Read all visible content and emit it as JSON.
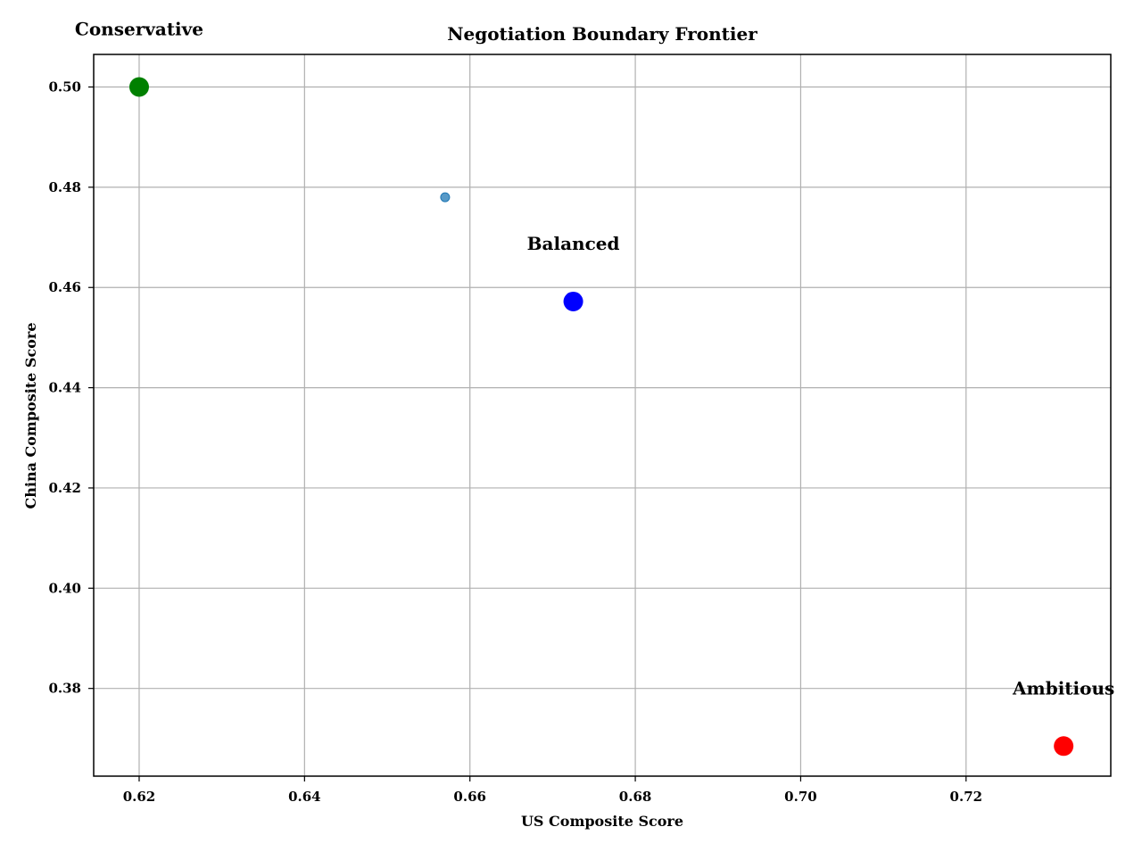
{
  "chart_data": {
    "type": "scatter",
    "title": "Negotiation Boundary Frontier",
    "xlabel": "US Composite Score",
    "ylabel": "China Composite Score",
    "xlim": [
      0.6145,
      0.7375
    ],
    "ylim": [
      0.3625,
      0.5065
    ],
    "xticks": [
      {
        "value": 0.62,
        "label": "0.62"
      },
      {
        "value": 0.64,
        "label": "0.64"
      },
      {
        "value": 0.66,
        "label": "0.66"
      },
      {
        "value": 0.68,
        "label": "0.68"
      },
      {
        "value": 0.7,
        "label": "0.70"
      },
      {
        "value": 0.72,
        "label": "0.72"
      }
    ],
    "yticks": [
      {
        "value": 0.38,
        "label": "0.38"
      },
      {
        "value": 0.4,
        "label": "0.40"
      },
      {
        "value": 0.42,
        "label": "0.42"
      },
      {
        "value": 0.44,
        "label": "0.44"
      },
      {
        "value": 0.46,
        "label": "0.46"
      },
      {
        "value": 0.48,
        "label": "0.48"
      },
      {
        "value": 0.5,
        "label": "0.50"
      }
    ],
    "grid": true,
    "points": [
      {
        "x": 0.62,
        "y": 0.5,
        "label": "Conservative",
        "color": "#008000",
        "size": "large"
      },
      {
        "x": 0.657,
        "y": 0.478,
        "label": "",
        "color": "#1f77b4",
        "size": "small"
      },
      {
        "x": 0.6725,
        "y": 0.4572,
        "label": "Balanced",
        "color": "#0000ff",
        "size": "large"
      },
      {
        "x": 0.7318,
        "y": 0.3685,
        "label": "Ambitious",
        "color": "#ff0000",
        "size": "large"
      }
    ]
  }
}
